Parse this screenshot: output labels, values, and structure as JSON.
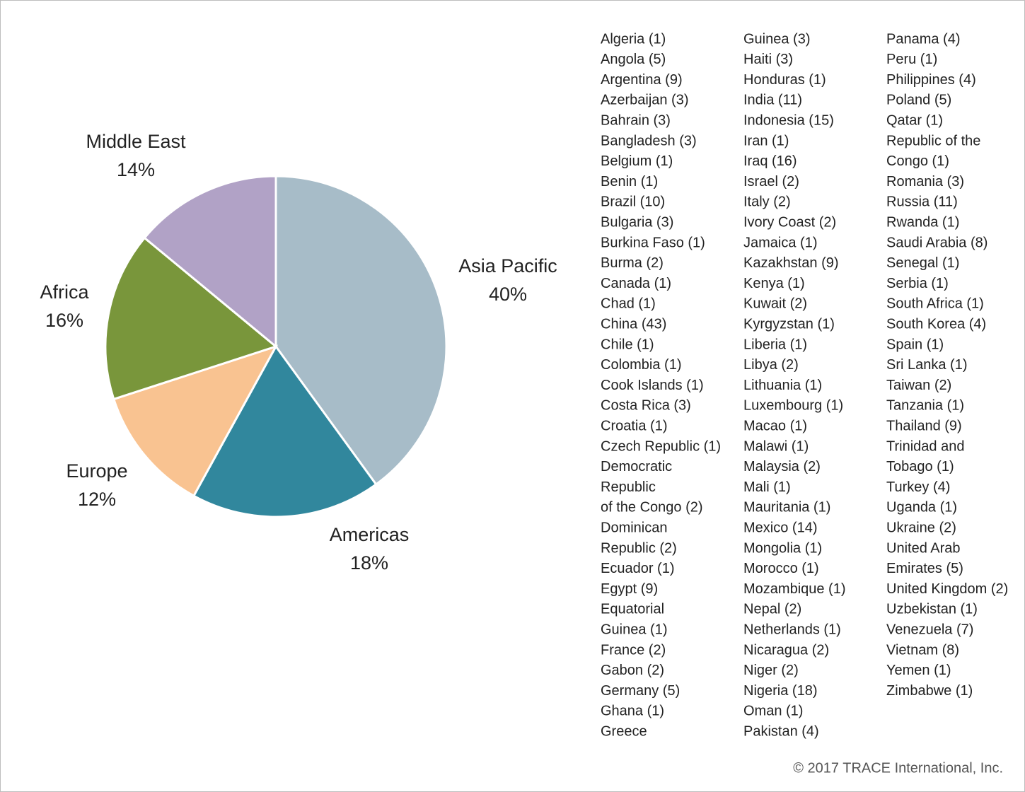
{
  "chart_data": {
    "type": "pie",
    "categories": [
      "Asia Pacific",
      "Americas",
      "Europe",
      "Africa",
      "Middle East"
    ],
    "values": [
      40,
      18,
      12,
      16,
      14
    ],
    "value_labels": [
      "40%",
      "18%",
      "12%",
      "16%",
      "14%"
    ],
    "colors": [
      "#a7bcc8",
      "#31879d",
      "#f9c391",
      "#79963b",
      "#b1a2c6"
    ]
  },
  "country_list": {
    "columns": [
      [
        "Algeria (1)",
        "Angola (5)",
        "Argentina (9)",
        "Azerbaijan (3)",
        "Bahrain (3)",
        "Bangladesh (3)",
        "Belgium (1)",
        "Benin (1)",
        "Brazil (10)",
        "Bulgaria (3)",
        "Burkina Faso (1)",
        "Burma (2)",
        "Canada (1)",
        "Chad (1)",
        "China (43)",
        "Chile (1)",
        "Colombia (1)",
        "Cook Islands (1)",
        "Costa Rica (3)",
        "Croatia (1)",
        "Czech Republic (1)",
        "Democratic",
        "Republic",
        "of the Congo (2)",
        "Dominican",
        "Republic (2)",
        "Ecuador (1)",
        "Egypt (9)",
        "Equatorial",
        "Guinea (1)",
        "France (2)",
        "Gabon (2)",
        "Germany (5)",
        "Ghana (1)",
        "Greece"
      ],
      [
        "Guinea (3)",
        "Haiti (3)",
        "Honduras (1)",
        "India (11)",
        "Indonesia (15)",
        "Iran (1)",
        "Iraq (16)",
        "Israel (2)",
        "Italy (2)",
        "Ivory Coast (2)",
        "Jamaica (1)",
        "Kazakhstan (9)",
        "Kenya (1)",
        "Kuwait (2)",
        "Kyrgyzstan (1)",
        "Liberia (1)",
        "Libya (2)",
        "Lithuania (1)",
        "Luxembourg (1)",
        "Macao (1)",
        "Malawi (1)",
        "Malaysia (2)",
        "Mali (1)",
        "Mauritania (1)",
        "Mexico (14)",
        "Mongolia (1)",
        "Morocco (1)",
        "Mozambique (1)",
        "Nepal (2)",
        "Netherlands (1)",
        "Nicaragua (2)",
        "Niger (2)",
        "Nigeria (18)",
        "Oman (1)",
        "Pakistan (4)"
      ],
      [
        "Panama (4)",
        "Peru (1)",
        "Philippines (4)",
        "Poland (5)",
        "Qatar (1)",
        "Republic of the",
        "Congo (1)",
        "Romania (3)",
        "Russia (11)",
        "Rwanda (1)",
        "Saudi Arabia (8)",
        "Senegal (1)",
        "Serbia (1)",
        "South Africa (1)",
        "South Korea (4)",
        "Spain (1)",
        "Sri Lanka (1)",
        "Taiwan (2)",
        "Tanzania (1)",
        "Thailand (9)",
        "Trinidad and",
        "Tobago (1)",
        "Turkey (4)",
        "Uganda (1)",
        "Ukraine (2)",
        "United Arab",
        "Emirates (5)",
        "United Kingdom (2)",
        "Uzbekistan (1)",
        "Venezuela (7)",
        "Vietnam (8)",
        "Yemen (1)",
        "Zimbabwe (1)"
      ]
    ]
  },
  "footer": "© 2017 TRACE International, Inc."
}
